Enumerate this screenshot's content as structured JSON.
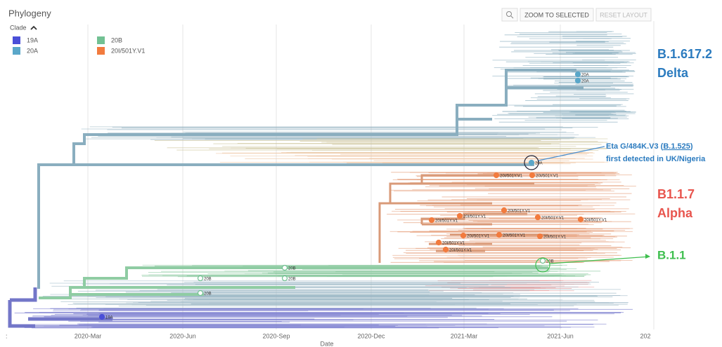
{
  "header": {
    "title": "Phylogeny",
    "legend_title": "Clade"
  },
  "legend": [
    {
      "label": "19A",
      "color": "#4a4fd8"
    },
    {
      "label": "20A",
      "color": "#5aa7c9"
    },
    {
      "label": "20B",
      "color": "#72c193"
    },
    {
      "label": "20I/501Y.V1",
      "color": "#f27b3e"
    }
  ],
  "buttons": {
    "zoom": "ZOOM TO SELECTED",
    "reset": "RESET LAYOUT"
  },
  "x_axis": {
    "ticks": [
      "2020-Mar",
      "2020-Jun",
      "2020-Sep",
      "2020-Dec",
      "2021-Mar",
      "2021-Jun",
      "202"
    ],
    "label": "Date",
    "left_mark": ":"
  },
  "annotations": {
    "delta_lineage": "B.1.617.2",
    "delta_name": "Delta",
    "eta_name": "Eta G/484K.V3 (",
    "eta_lineage": "B.1.525",
    "eta_close": ")",
    "eta_note": "first detected in UK/Nigeria",
    "alpha_lineage": "B1.1.7",
    "alpha_name": "Alpha",
    "b11": "B.1.1"
  },
  "tree_labels": [
    "19A",
    "20B",
    "20B",
    "20B",
    "20B",
    "20B",
    "20A",
    "20A",
    "20A",
    "20I/501Y.V1",
    "20I/501Y.V1",
    "20I/501Y.V1",
    "20I/501Y.V1",
    "20I/501Y.V1",
    "20I/501Y.V1",
    "20I/501Y.V1",
    "20I/501Y.V1",
    "20I/501Y.V1",
    "20I/501Y.V1",
    "20I/501Y.V1",
    "20I/501Y.V1"
  ]
}
